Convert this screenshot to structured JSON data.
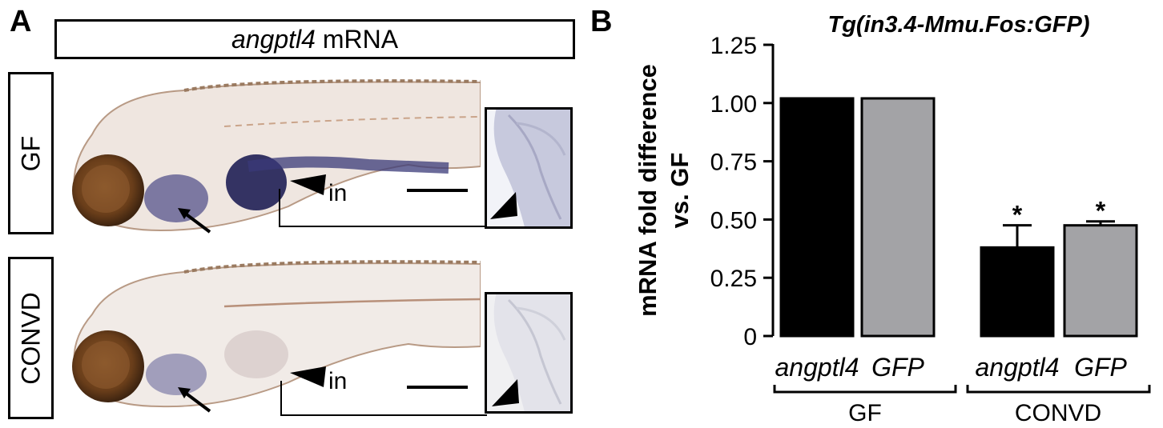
{
  "panel_a": {
    "letter": "A",
    "header_gene": "angptl4",
    "header_suffix": " mRNA",
    "rows": [
      {
        "label": "GF",
        "annotation": "in"
      },
      {
        "label": "CONVD",
        "annotation": "in"
      }
    ]
  },
  "panel_b": {
    "letter": "B"
  },
  "chart_data": {
    "type": "bar",
    "title": "Tg(in3.4-Mmu.Fos:GFP)",
    "ylabel_line1": "mRNA fold difference",
    "ylabel_line2": "vs. GF",
    "xlabel": "",
    "ylim": [
      0,
      1.25
    ],
    "yticks": [
      "1.25",
      "1.00",
      "0.75",
      "0.50",
      "0.25",
      "0"
    ],
    "categories": [
      "angptl4",
      "GFP",
      "angptl4",
      "GFP"
    ],
    "groups": [
      "GF",
      "CONVD"
    ],
    "values": [
      1.02,
      1.02,
      0.38,
      0.475
    ],
    "errors": [
      0.005,
      0.005,
      0.095,
      0.017
    ],
    "significance": [
      "",
      "",
      "*",
      "*"
    ],
    "colors": [
      "#000000",
      "#a3a3a6",
      "#000000",
      "#a3a3a6"
    ]
  }
}
